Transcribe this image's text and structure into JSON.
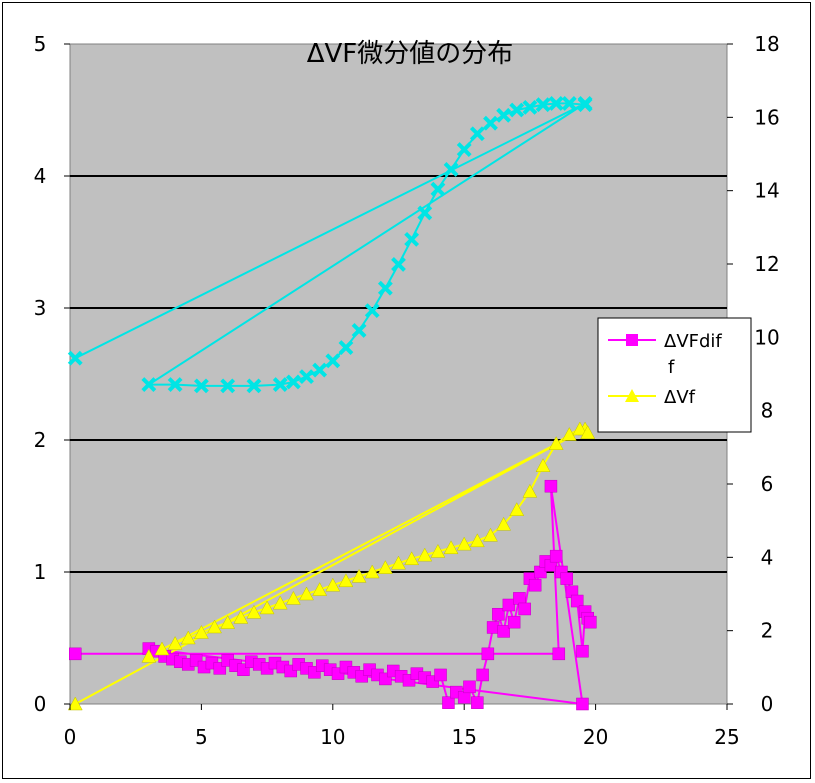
{
  "chart_data": {
    "type": "scatter",
    "title": "ΔVF微分値の分布",
    "xlabel": "",
    "ylabel": "",
    "xlim": [
      0,
      25
    ],
    "ylim": [
      0,
      5
    ],
    "y2lim": [
      0,
      18
    ],
    "x_ticks": [
      "0",
      "5",
      "10",
      "15",
      "20",
      "25"
    ],
    "y_ticks": [
      "0",
      "1",
      "2",
      "3",
      "4",
      "5"
    ],
    "y2_ticks": [
      "0",
      "2",
      "4",
      "6",
      "8",
      "10",
      "12",
      "14",
      "16",
      "18"
    ],
    "grid": "horizontal",
    "legend_position": "right",
    "colors": {
      "plot_bg": "#c0c0c0",
      "dVFdiff": "#ff00ff",
      "dVf": "#ffff00",
      "dVf_line": "#ffff00",
      "cyan": "#00e5e5",
      "cyan_line": "#00e5e5"
    },
    "legend": [
      {
        "label": "ΔVFdif\nf",
        "color": "#ff00ff",
        "marker": "square"
      },
      {
        "label": "ΔVf",
        "color": "#ffff00",
        "marker": "triangle"
      }
    ],
    "series": [
      {
        "name": "ΔVFdiff",
        "axis": "left",
        "marker": "square",
        "color": "#ff00ff",
        "points": [
          [
            0.2,
            0.38
          ],
          [
            18.6,
            0.38
          ],
          [
            18.3,
            1.65
          ],
          [
            19.5,
            0.0
          ],
          [
            3.0,
            0.42
          ],
          [
            3.3,
            0.4
          ],
          [
            3.6,
            0.36
          ],
          [
            3.9,
            0.34
          ],
          [
            4.2,
            0.32
          ],
          [
            4.5,
            0.3
          ],
          [
            4.8,
            0.33
          ],
          [
            5.1,
            0.28
          ],
          [
            5.4,
            0.31
          ],
          [
            5.7,
            0.27
          ],
          [
            6.0,
            0.33
          ],
          [
            6.3,
            0.29
          ],
          [
            6.6,
            0.26
          ],
          [
            6.9,
            0.32
          ],
          [
            7.2,
            0.3
          ],
          [
            7.5,
            0.27
          ],
          [
            7.8,
            0.31
          ],
          [
            8.1,
            0.28
          ],
          [
            8.4,
            0.25
          ],
          [
            8.7,
            0.3
          ],
          [
            9.0,
            0.27
          ],
          [
            9.3,
            0.24
          ],
          [
            9.6,
            0.29
          ],
          [
            9.9,
            0.26
          ],
          [
            10.2,
            0.23
          ],
          [
            10.5,
            0.28
          ],
          [
            10.8,
            0.24
          ],
          [
            11.1,
            0.21
          ],
          [
            11.4,
            0.26
          ],
          [
            11.7,
            0.22
          ],
          [
            12.0,
            0.19
          ],
          [
            12.3,
            0.25
          ],
          [
            12.6,
            0.21
          ],
          [
            12.9,
            0.18
          ],
          [
            13.2,
            0.23
          ],
          [
            13.5,
            0.2
          ],
          [
            13.8,
            0.17
          ],
          [
            14.1,
            0.22
          ],
          [
            14.4,
            0.01
          ],
          [
            14.7,
            0.09
          ],
          [
            15.0,
            0.05
          ],
          [
            15.2,
            0.13
          ],
          [
            15.5,
            0.01
          ],
          [
            15.7,
            0.22
          ],
          [
            15.9,
            0.38
          ],
          [
            16.1,
            0.58
          ],
          [
            16.3,
            0.68
          ],
          [
            16.5,
            0.55
          ],
          [
            16.7,
            0.75
          ],
          [
            16.9,
            0.62
          ],
          [
            17.1,
            0.8
          ],
          [
            17.3,
            0.72
          ],
          [
            17.5,
            0.95
          ],
          [
            17.7,
            0.9
          ],
          [
            17.9,
            1.0
          ],
          [
            18.1,
            1.08
          ],
          [
            18.3,
            1.05
          ],
          [
            18.5,
            1.12
          ],
          [
            18.7,
            1.0
          ],
          [
            18.9,
            0.95
          ],
          [
            19.1,
            0.85
          ],
          [
            19.3,
            0.78
          ],
          [
            19.5,
            0.4
          ],
          [
            19.6,
            0.7
          ],
          [
            19.7,
            0.65
          ],
          [
            19.8,
            0.62
          ]
        ]
      },
      {
        "name": "ΔVf",
        "axis": "right",
        "marker": "triangle",
        "color": "#ffff00",
        "points": [
          [
            0.2,
            0.0
          ],
          [
            19.6,
            7.5
          ],
          [
            3.0,
            1.3
          ],
          [
            3.5,
            1.5
          ],
          [
            4.0,
            1.65
          ],
          [
            4.5,
            1.8
          ],
          [
            5.0,
            1.95
          ],
          [
            5.5,
            2.1
          ],
          [
            6.0,
            2.22
          ],
          [
            6.5,
            2.36
          ],
          [
            7.0,
            2.5
          ],
          [
            7.5,
            2.62
          ],
          [
            8.0,
            2.75
          ],
          [
            8.5,
            2.88
          ],
          [
            9.0,
            3.0
          ],
          [
            9.5,
            3.12
          ],
          [
            10.0,
            3.24
          ],
          [
            10.5,
            3.36
          ],
          [
            11.0,
            3.48
          ],
          [
            11.5,
            3.6
          ],
          [
            12.0,
            3.72
          ],
          [
            12.5,
            3.84
          ],
          [
            13.0,
            3.96
          ],
          [
            13.5,
            4.06
          ],
          [
            14.0,
            4.16
          ],
          [
            14.5,
            4.26
          ],
          [
            15.0,
            4.36
          ],
          [
            15.5,
            4.45
          ],
          [
            16.0,
            4.6
          ],
          [
            16.5,
            4.9
          ],
          [
            17.0,
            5.3
          ],
          [
            17.5,
            5.8
          ],
          [
            18.0,
            6.5
          ],
          [
            18.5,
            7.1
          ],
          [
            19.0,
            7.35
          ],
          [
            19.4,
            7.5
          ],
          [
            19.7,
            7.4
          ]
        ]
      },
      {
        "name": "",
        "axis": "left",
        "marker": "x",
        "color": "#00e5e5",
        "points": [
          [
            0.2,
            2.62
          ],
          [
            19.6,
            4.55
          ],
          [
            3.0,
            2.42
          ],
          [
            4.0,
            2.42
          ],
          [
            5.0,
            2.41
          ],
          [
            6.0,
            2.41
          ],
          [
            7.0,
            2.41
          ],
          [
            8.0,
            2.42
          ],
          [
            8.5,
            2.44
          ],
          [
            9.0,
            2.48
          ],
          [
            9.5,
            2.53
          ],
          [
            10.0,
            2.6
          ],
          [
            10.5,
            2.7
          ],
          [
            11.0,
            2.83
          ],
          [
            11.5,
            2.98
          ],
          [
            12.0,
            3.15
          ],
          [
            12.5,
            3.33
          ],
          [
            13.0,
            3.52
          ],
          [
            13.5,
            3.72
          ],
          [
            14.0,
            3.9
          ],
          [
            14.5,
            4.05
          ],
          [
            15.0,
            4.2
          ],
          [
            15.5,
            4.32
          ],
          [
            16.0,
            4.4
          ],
          [
            16.5,
            4.46
          ],
          [
            17.0,
            4.5
          ],
          [
            17.5,
            4.52
          ],
          [
            18.0,
            4.54
          ],
          [
            18.5,
            4.55
          ],
          [
            19.0,
            4.55
          ],
          [
            19.6,
            4.54
          ]
        ]
      }
    ]
  }
}
